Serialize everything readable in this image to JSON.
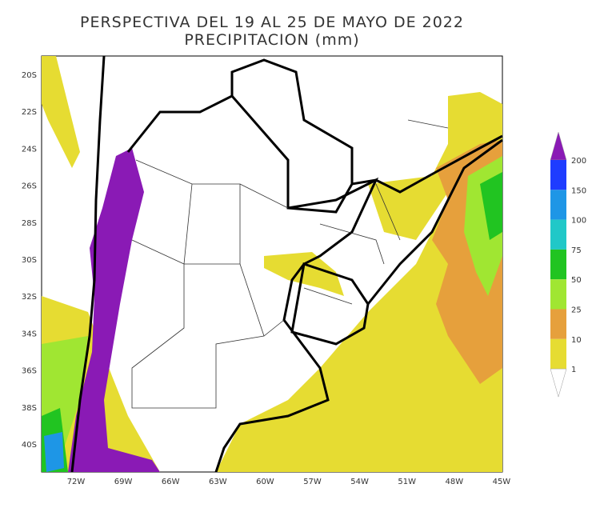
{
  "header": {
    "title": "PERSPECTIVA DEL 19 AL 25 DE MAYO DE 2022",
    "subtitle": "PRECIPITACION (mm)"
  },
  "axes": {
    "lat_labels": [
      "20S",
      "22S",
      "24S",
      "26S",
      "28S",
      "30S",
      "32S",
      "34S",
      "36S",
      "38S",
      "40S"
    ],
    "lon_labels": [
      "72W",
      "69W",
      "66W",
      "63W",
      "60W",
      "57W",
      "54W",
      "51W",
      "48W",
      "45W"
    ]
  },
  "legend": {
    "labels": [
      "200",
      "150",
      "100",
      "75",
      "50",
      "25",
      "10",
      "1"
    ],
    "colors": [
      "#8a1ab5",
      "#1e3cff",
      "#1e96e6",
      "#20c8c8",
      "#21c421",
      "#a0e632",
      "#e6a03c",
      "#e6dc32",
      "#ffffff"
    ]
  }
}
